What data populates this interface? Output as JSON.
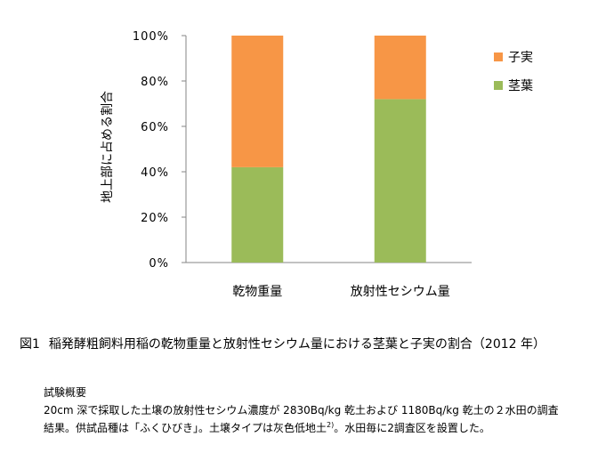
{
  "chart_data": {
    "type": "stacked_bar_percent",
    "categories": [
      "乾物重量",
      "放射性セシウム量"
    ],
    "series": [
      {
        "name": "茎葉",
        "values": [
          42,
          72
        ],
        "color": "#9bbb59"
      },
      {
        "name": "子実",
        "values": [
          58,
          28
        ],
        "color": "#f79646"
      }
    ],
    "ylabel": "地上部に占める割合",
    "ylim": [
      0,
      100
    ],
    "yticks": [
      "0%",
      "20%",
      "40%",
      "60%",
      "80%",
      "100%"
    ],
    "legend": [
      {
        "name": "子実",
        "color": "#f79646"
      },
      {
        "name": "茎葉",
        "color": "#9bbb59"
      }
    ],
    "legend_position": "right",
    "grid": false
  },
  "caption": {
    "fig_number": "図1",
    "text": "稲発酵粗飼料用稲の乾物重量と放射性セシウム量における茎葉と子実の割合（2012 年）"
  },
  "notes": {
    "heading": "試験概要",
    "line1": "20cm 深で採取した土壌の放射性セシウム濃度が 2830Bq/kg 乾土および 1180Bq/kg 乾土の２水田の調査",
    "line2_before": "結果。供試品種は「ふくひびき」。土壌タイプは灰色低地土",
    "line2_sup": "2)",
    "line2_after": "。水田毎に2調査区を設置した。"
  }
}
